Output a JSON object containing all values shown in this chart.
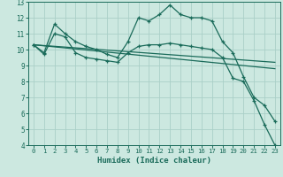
{
  "xlabel": "Humidex (Indice chaleur)",
  "bg_color": "#cce8e0",
  "line_color": "#1a6b5a",
  "grid_color": "#aacfc8",
  "xlim": [
    -0.5,
    23.5
  ],
  "ylim": [
    4,
    13
  ],
  "xticks": [
    0,
    1,
    2,
    3,
    4,
    5,
    6,
    7,
    8,
    9,
    10,
    11,
    12,
    13,
    14,
    15,
    16,
    17,
    18,
    19,
    20,
    21,
    22,
    23
  ],
  "yticks": [
    4,
    5,
    6,
    7,
    8,
    9,
    10,
    11,
    12,
    13
  ],
  "series1_x": [
    0,
    1,
    2,
    3,
    4,
    5,
    6,
    7,
    8,
    9,
    10,
    11,
    12,
    13,
    14,
    15,
    16,
    17,
    18,
    19,
    20,
    21,
    22,
    23
  ],
  "series1_y": [
    10.3,
    9.8,
    11.6,
    11.0,
    10.5,
    10.2,
    10.0,
    9.7,
    9.5,
    10.5,
    12.0,
    11.8,
    12.2,
    12.8,
    12.2,
    12.0,
    12.0,
    11.8,
    10.5,
    9.8,
    8.3,
    7.0,
    6.5,
    5.5
  ],
  "series2_x": [
    0,
    1,
    2,
    3,
    4,
    5,
    6,
    7,
    8,
    9,
    10,
    11,
    12,
    13,
    14,
    15,
    16,
    17,
    18,
    19,
    20,
    21,
    22,
    23
  ],
  "series2_y": [
    10.3,
    9.7,
    11.0,
    10.8,
    9.8,
    9.5,
    9.4,
    9.3,
    9.2,
    9.8,
    10.2,
    10.3,
    10.3,
    10.4,
    10.3,
    10.2,
    10.1,
    10.0,
    9.5,
    8.2,
    8.0,
    6.8,
    5.3,
    4.0
  ],
  "line1_x": [
    0,
    23
  ],
  "line1_y": [
    10.3,
    9.2
  ],
  "line2_x": [
    0,
    23
  ],
  "line2_y": [
    10.3,
    8.8
  ]
}
